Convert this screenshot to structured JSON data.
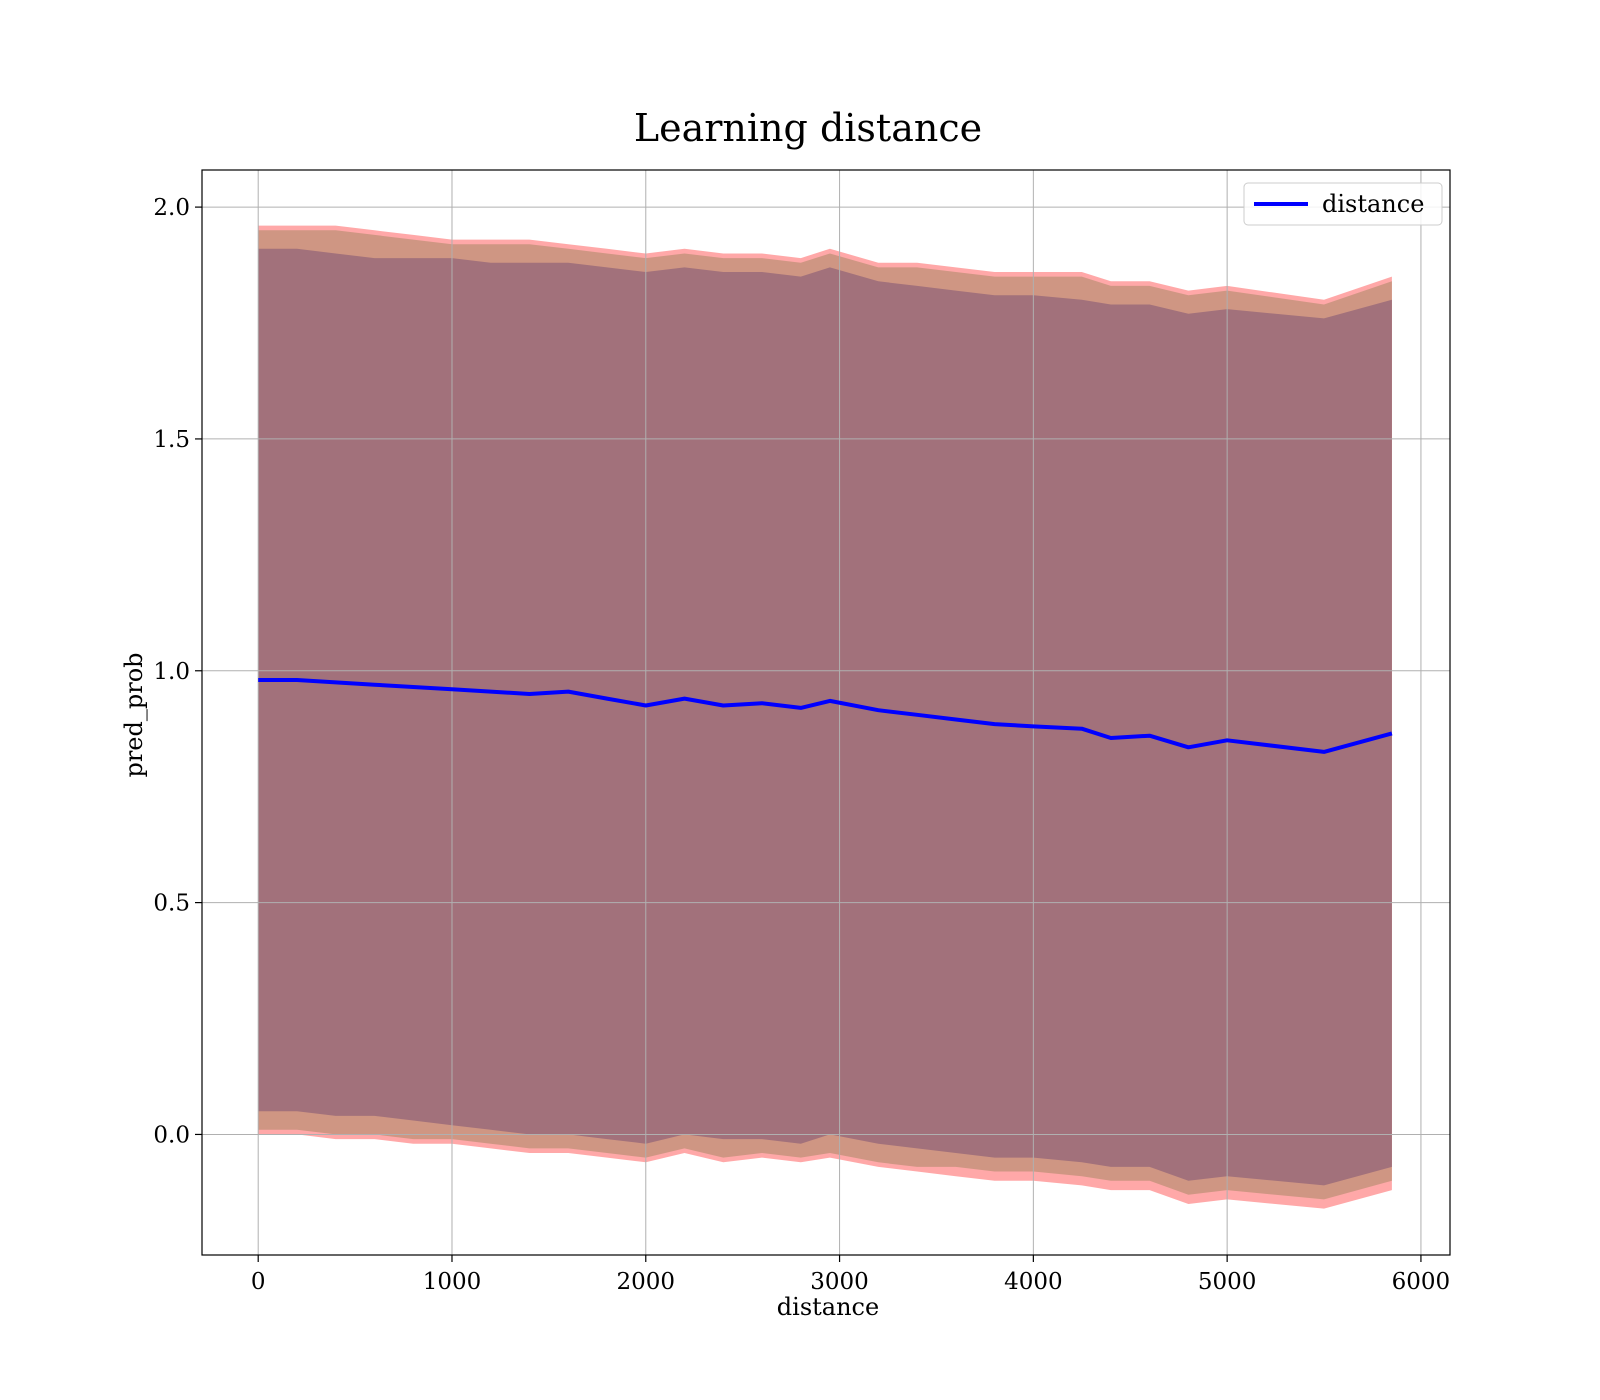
{
  "chart_data": {
    "type": "line",
    "title": "Learning distance",
    "xlabel": "distance",
    "ylabel": "pred_prob",
    "xlim": [
      -290,
      6150
    ],
    "ylim": [
      -0.26,
      2.08
    ],
    "xticks": [
      0,
      1000,
      2000,
      3000,
      4000,
      5000,
      6000
    ],
    "xtick_labels": [
      "0",
      "1000",
      "2000",
      "3000",
      "4000",
      "5000",
      "6000"
    ],
    "yticks": [
      0.0,
      0.5,
      1.0,
      1.5,
      2.0
    ],
    "ytick_labels": [
      "0.0",
      "0.5",
      "1.0",
      "1.5",
      "2.0"
    ],
    "grid": true,
    "legend": {
      "placement": "top-right",
      "entries": [
        "distance"
      ]
    },
    "colors": {
      "line": "#0000ff",
      "outer_band": "#ff9999",
      "middle_band": "#c7937c",
      "inner_band": "#a2717b"
    },
    "x": [
      0,
      200,
      400,
      600,
      800,
      1000,
      1200,
      1400,
      1600,
      1800,
      2000,
      2200,
      2400,
      2600,
      2800,
      2950,
      3200,
      3400,
      3600,
      3800,
      4000,
      4250,
      4400,
      4600,
      4800,
      5000,
      5500,
      5850
    ],
    "series": [
      {
        "name": "distance",
        "values": [
          0.98,
          0.98,
          0.975,
          0.97,
          0.965,
          0.96,
          0.955,
          0.95,
          0.955,
          0.94,
          0.925,
          0.94,
          0.925,
          0.93,
          0.92,
          0.935,
          0.915,
          0.905,
          0.895,
          0.885,
          0.88,
          0.875,
          0.855,
          0.86,
          0.835,
          0.85,
          0.825,
          0.865
        ]
      }
    ],
    "bands": [
      {
        "lower": [
          0.0,
          0.0,
          -0.01,
          -0.01,
          -0.02,
          -0.02,
          -0.03,
          -0.04,
          -0.04,
          -0.05,
          -0.06,
          -0.04,
          -0.06,
          -0.05,
          -0.06,
          -0.05,
          -0.07,
          -0.08,
          -0.09,
          -0.1,
          -0.1,
          -0.11,
          -0.12,
          -0.12,
          -0.15,
          -0.14,
          -0.16,
          -0.12
        ],
        "upper": [
          1.96,
          1.96,
          1.96,
          1.95,
          1.94,
          1.93,
          1.93,
          1.93,
          1.92,
          1.91,
          1.9,
          1.91,
          1.9,
          1.9,
          1.89,
          1.91,
          1.88,
          1.88,
          1.87,
          1.86,
          1.86,
          1.86,
          1.84,
          1.84,
          1.82,
          1.83,
          1.8,
          1.85
        ]
      },
      {
        "lower": [
          0.01,
          0.01,
          0.0,
          0.0,
          -0.01,
          -0.01,
          -0.02,
          -0.03,
          -0.03,
          -0.04,
          -0.05,
          -0.03,
          -0.05,
          -0.04,
          -0.05,
          -0.04,
          -0.06,
          -0.07,
          -0.07,
          -0.08,
          -0.08,
          -0.09,
          -0.1,
          -0.1,
          -0.13,
          -0.12,
          -0.14,
          -0.1
        ],
        "upper": [
          1.95,
          1.95,
          1.95,
          1.94,
          1.93,
          1.92,
          1.92,
          1.92,
          1.91,
          1.9,
          1.89,
          1.9,
          1.89,
          1.89,
          1.88,
          1.9,
          1.87,
          1.87,
          1.86,
          1.85,
          1.85,
          1.85,
          1.83,
          1.83,
          1.81,
          1.82,
          1.79,
          1.84
        ]
      },
      {
        "lower": [
          0.05,
          0.05,
          0.04,
          0.04,
          0.03,
          0.02,
          0.01,
          0.0,
          0.0,
          -0.01,
          -0.02,
          0.0,
          -0.01,
          -0.01,
          -0.02,
          0.0,
          -0.02,
          -0.03,
          -0.04,
          -0.05,
          -0.05,
          -0.06,
          -0.07,
          -0.07,
          -0.1,
          -0.09,
          -0.11,
          -0.07
        ],
        "upper": [
          1.91,
          1.91,
          1.9,
          1.89,
          1.89,
          1.89,
          1.88,
          1.88,
          1.88,
          1.87,
          1.86,
          1.87,
          1.86,
          1.86,
          1.85,
          1.87,
          1.84,
          1.83,
          1.82,
          1.81,
          1.81,
          1.8,
          1.79,
          1.79,
          1.77,
          1.78,
          1.76,
          1.8
        ]
      }
    ]
  }
}
